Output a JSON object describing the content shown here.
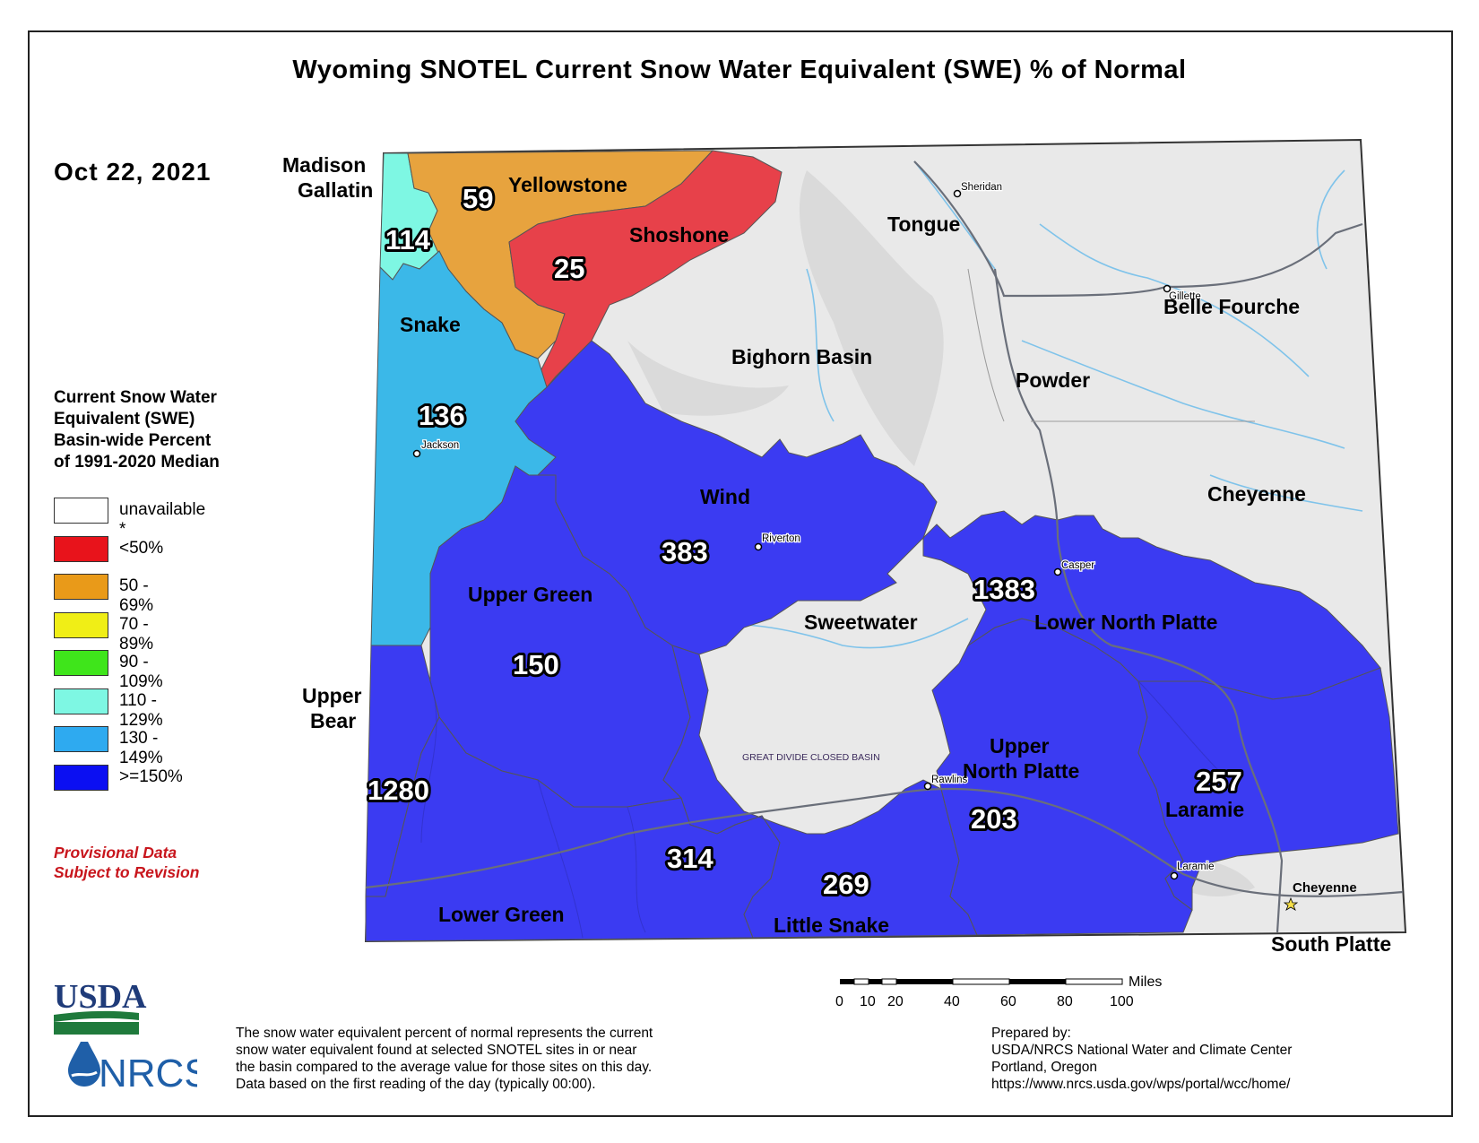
{
  "title": "Wyoming SNOTEL Current Snow Water Equivalent (SWE) % of Normal",
  "date": "Oct 22, 2021",
  "legend": {
    "title_lines": [
      "Current Snow Water",
      "Equivalent (SWE)",
      "Basin-wide Percent",
      "of 1991-2020 Median"
    ],
    "items": [
      {
        "label": "unavailable *",
        "color": "#ffffff"
      },
      {
        "label": "<50%",
        "color": "#e8131b"
      },
      {
        "label": "50 - 69%",
        "color": "#e99a19"
      },
      {
        "label": "70 - 89%",
        "color": "#f0ee16"
      },
      {
        "label": "90 - 109%",
        "color": "#3fe51b"
      },
      {
        "label": "110 - 129%",
        "color": "#7ef7e3"
      },
      {
        "label": "130 - 149%",
        "color": "#2eaaf0"
      },
      {
        "label": ">=150%",
        "color": "#0b0ff2"
      }
    ]
  },
  "provisional": [
    "Provisional Data",
    "Subject to Revision"
  ],
  "basins": {
    "madison_gallatin": {
      "name_lines": [
        "Madison",
        "Gallatin"
      ],
      "value": "114",
      "color": "#7ef7e3"
    },
    "yellowstone": {
      "name": "Yellowstone",
      "value": "59",
      "color": "#e7a33e"
    },
    "shoshone": {
      "name": "Shoshone",
      "value": "25",
      "color": "#e7414a"
    },
    "snake": {
      "name": "Snake",
      "value": "136",
      "color": "#3bb8e8"
    },
    "tongue": {
      "name": "Tongue"
    },
    "belle_fourche": {
      "name": "Belle Fourche"
    },
    "bighorn_basin": {
      "name": "Bighorn Basin"
    },
    "powder": {
      "name": "Powder"
    },
    "cheyenne": {
      "name": "Cheyenne"
    },
    "wind": {
      "name": "Wind",
      "value": "383",
      "color": "#3b3bf2"
    },
    "upper_green": {
      "name": "Upper Green",
      "value": "150",
      "color": "#3b3bf2"
    },
    "sweetwater": {
      "name": "Sweetwater"
    },
    "lower_north_platte": {
      "name": "Lower North Platte",
      "value": "1383",
      "color": "#3b3bf2"
    },
    "upper_bear": {
      "name_lines": [
        "Upper",
        "Bear"
      ],
      "value": "1280",
      "color": "#3b3bf2"
    },
    "upper_north_platte": {
      "name_lines": [
        "Upper",
        "North Platte"
      ],
      "value": "203",
      "color": "#3b3bf2"
    },
    "laramie": {
      "name": "Laramie",
      "value": "257",
      "color": "#3b3bf2"
    },
    "lower_green": {
      "name": "Lower Green",
      "value": "314",
      "color": "#3b3bf2"
    },
    "little_snake": {
      "name": "Little Snake",
      "value": "269",
      "color": "#3b3bf2"
    },
    "south_platte": {
      "name": "South Platte"
    },
    "great_divide": {
      "name": "GREAT DIVIDE CLOSED BASIN"
    }
  },
  "towns": {
    "sheridan": "Sheridan",
    "gillette": "Gillette",
    "jackson": "Jackson",
    "riverton": "Riverton",
    "casper": "Casper",
    "rawlins": "Rawlins",
    "laramie": "Laramie",
    "cheyenne": "Cheyenne"
  },
  "scale": {
    "unit": "Miles",
    "ticks": [
      "0",
      "10",
      "20",
      "40",
      "60",
      "80",
      "100"
    ]
  },
  "footnote": [
    "The snow water equivalent percent of normal represents the current",
    "snow water equivalent found at selected SNOTEL sites in or near",
    "the basin compared to the average value for those sites on this day.",
    "Data based on the first reading of the day (typically 00:00)."
  ],
  "prepared": [
    "Prepared by:",
    "USDA/NRCS National Water and Climate Center",
    "Portland, Oregon",
    "https://www.nrcs.usda.gov/wps/portal/wcc/home/"
  ],
  "logo": {
    "usda": "USDA",
    "nrcs": "NRCS"
  },
  "colors": {
    "unavailable_fill": "#e9e9e9",
    "river": "#7fc3ea",
    "road": "#6a6f7a"
  }
}
